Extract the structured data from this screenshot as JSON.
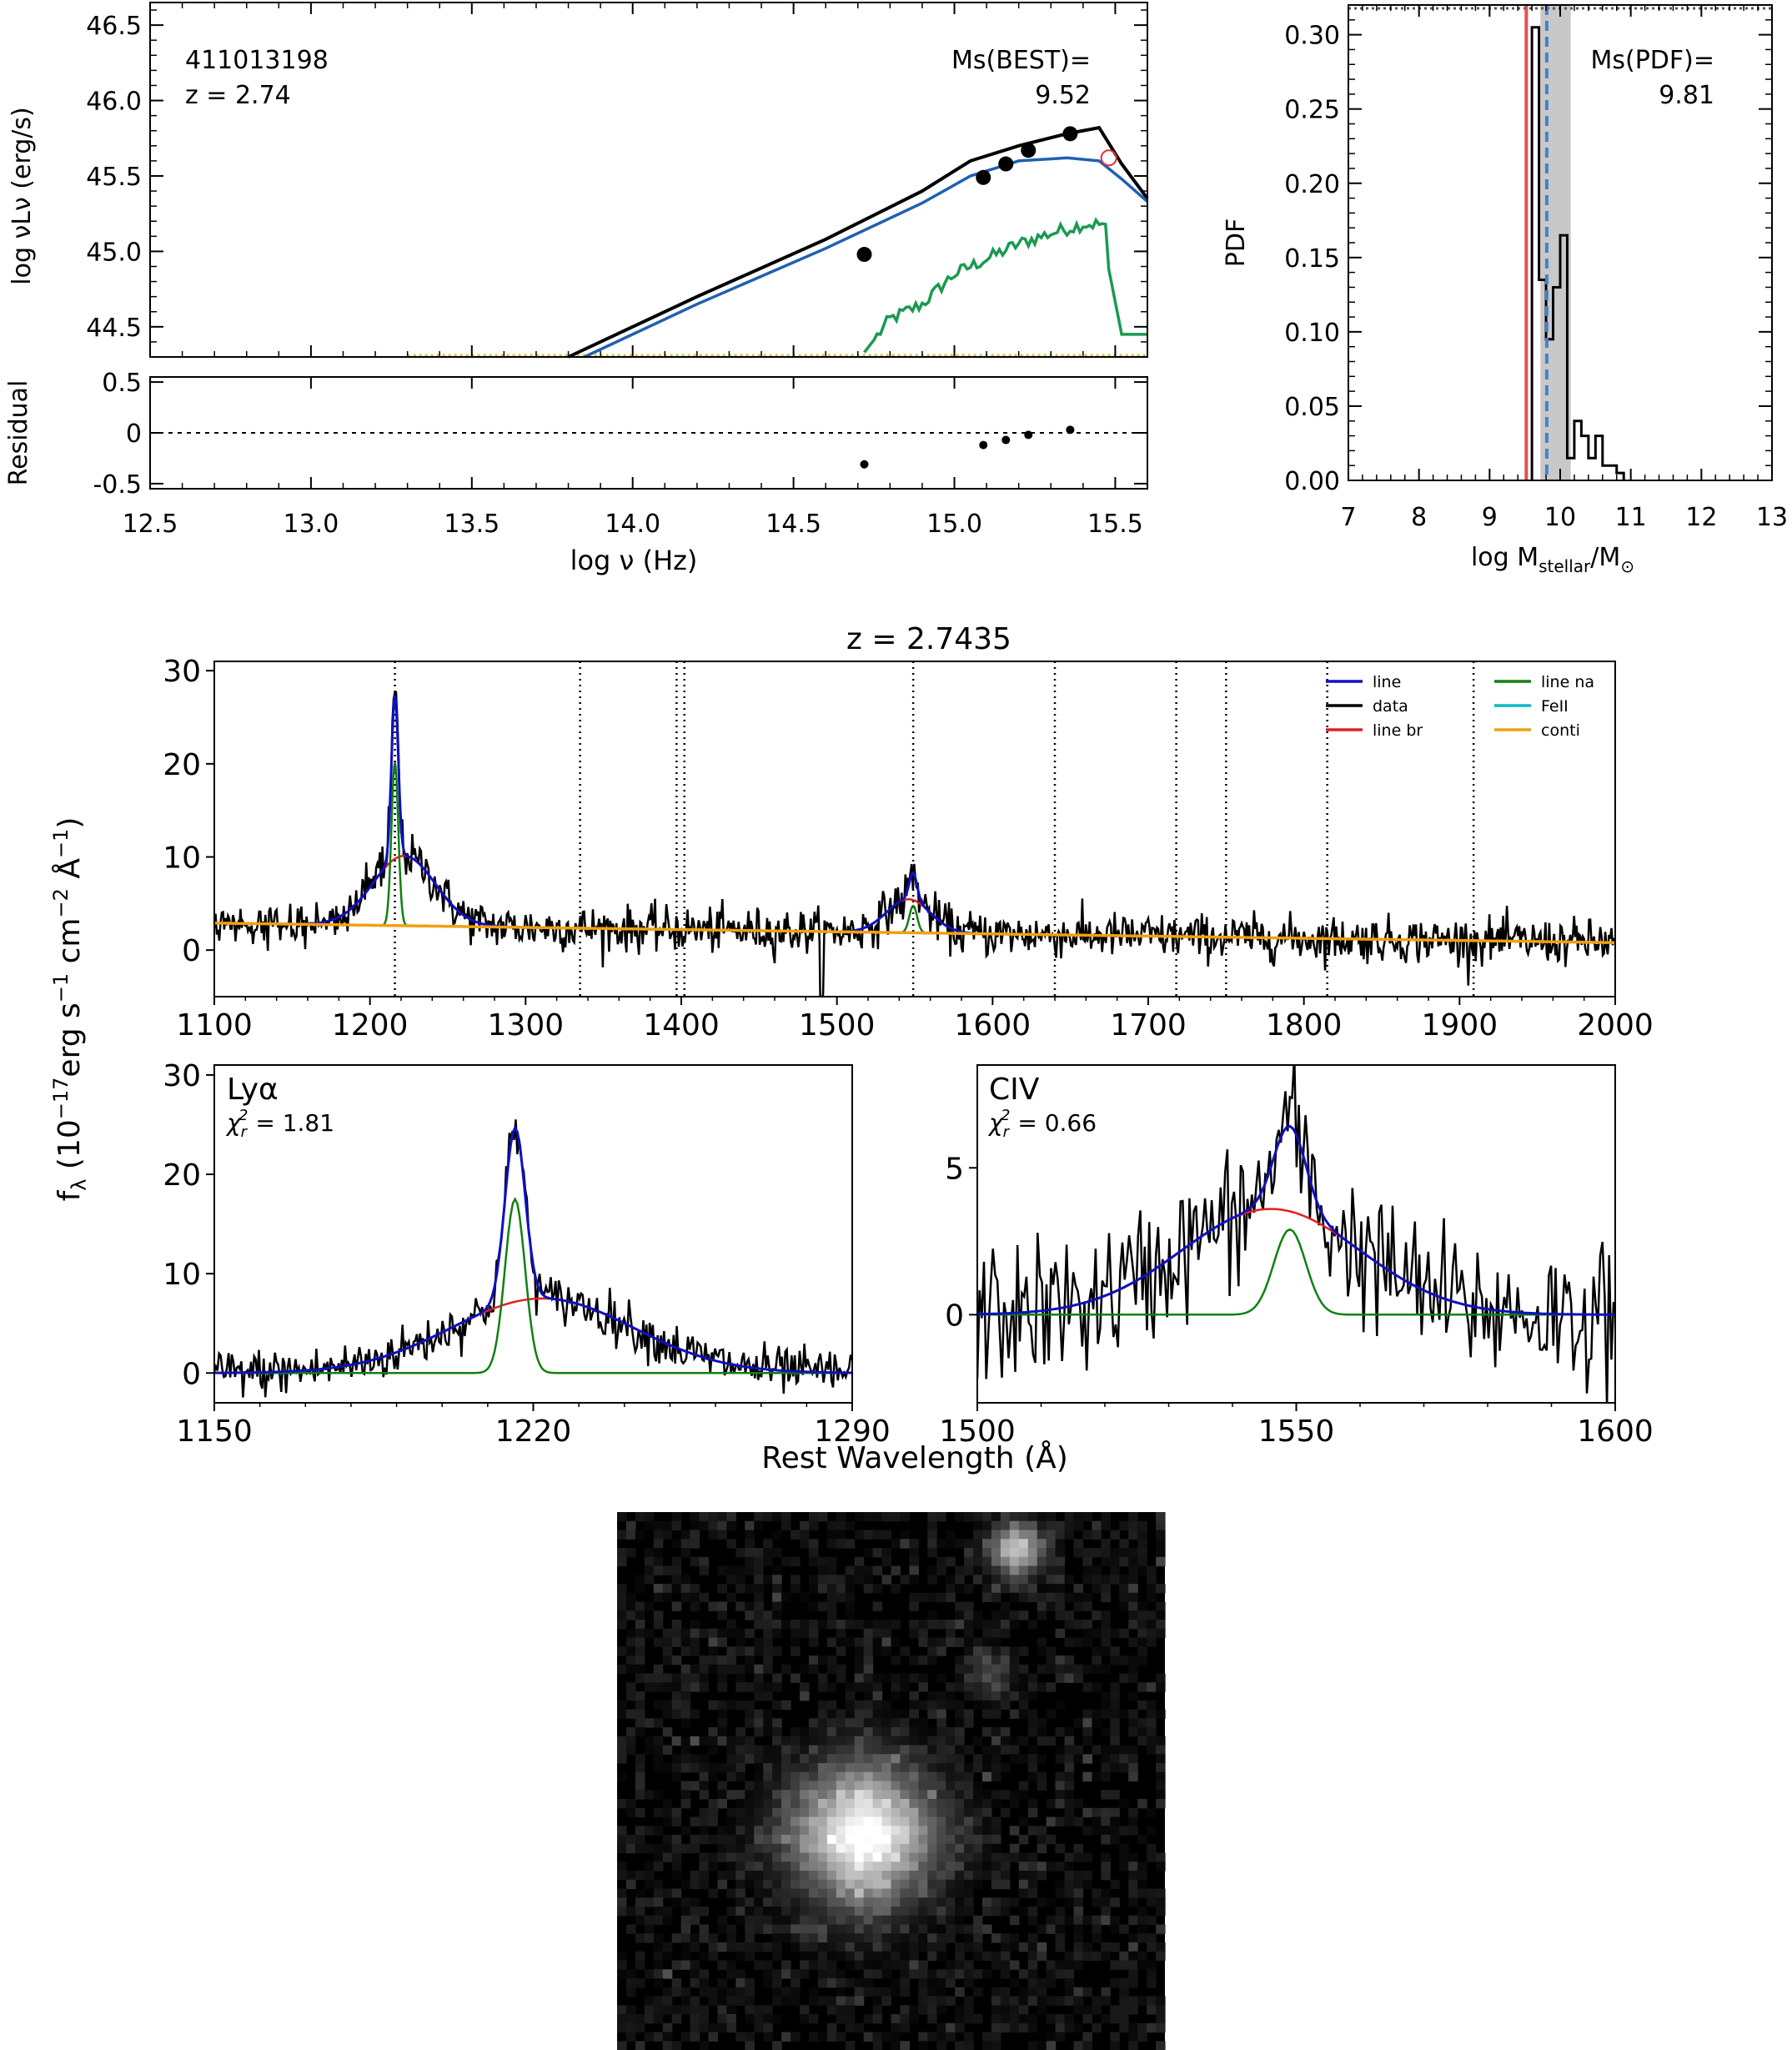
{
  "sed": {
    "object_id": "411013198",
    "redshift_label": "z = 2.74",
    "ms_label": "Ms(BEST)=",
    "ms_value": "9.52",
    "ylabel": "log νLν (erg/s)",
    "residual_ylabel": "Residual",
    "xlabel": "log ν (Hz)",
    "xlim": [
      12.5,
      15.6
    ],
    "ylim": [
      44.3,
      46.65
    ],
    "res_ylim": [
      -0.55,
      0.55
    ],
    "xticks": [
      "12.5",
      "13.0",
      "13.5",
      "14.0",
      "14.5",
      "15.0",
      "15.5"
    ],
    "yticks": [
      "44.5",
      "45.0",
      "45.5",
      "46.0",
      "46.5"
    ],
    "res_yticks": [
      "0.5",
      "0",
      "-0.5"
    ],
    "colors": {
      "total": "#000000",
      "agn": "#2060b0",
      "galaxy": "#1a9a50",
      "host": "#d4c43a",
      "upper": "#e03030"
    }
  },
  "pdf": {
    "ylabel": "PDF",
    "xlabel": "log M",
    "xlabel_sub": "stellar",
    "xlabel_tail": "/M",
    "xlabel_sun": "⊙",
    "ms_label": "Ms(PDF)=",
    "ms_value": "9.81",
    "xlim": [
      7,
      13
    ],
    "ylim": [
      0,
      0.32
    ],
    "xticks": [
      "7",
      "8",
      "9",
      "10",
      "11",
      "12",
      "13"
    ],
    "yticks": [
      "0.00",
      "0.05",
      "0.10",
      "0.15",
      "0.20",
      "0.25",
      "0.30"
    ],
    "best_mass": 9.52,
    "pdf_mass": 9.81,
    "band": [
      9.72,
      10.15
    ],
    "colors": {
      "best": "#e05050",
      "pdf": "#4a80c8",
      "band": "#c8c8c8"
    }
  },
  "spectrum": {
    "title": "z = 2.7435",
    "ylabel": "f",
    "ylabel_sub": "λ",
    "ylabel_rest": " (10",
    "ylabel_exp1": "−17",
    "ylabel_mid": "erg s",
    "ylabel_exp2": "−1",
    "ylabel_mid2": " cm",
    "ylabel_exp3": "−2",
    "ylabel_mid3": " Å",
    "ylabel_exp4": "−1",
    "ylabel_end": ")",
    "xlim": [
      1100,
      2000
    ],
    "ylim": [
      -5,
      31
    ],
    "xticks": [
      "1100",
      "1200",
      "1300",
      "1400",
      "1500",
      "1600",
      "1700",
      "1800",
      "1900",
      "2000"
    ],
    "yticks": [
      "0",
      "10",
      "20",
      "30"
    ],
    "line_markers": [
      1216,
      1335,
      1397,
      1402,
      1549,
      1640,
      1718,
      1750,
      1815,
      1909
    ],
    "legend": [
      "line",
      "data",
      "line br",
      "line na",
      "FeII",
      "conti"
    ],
    "legend_colors": [
      "#1010c0",
      "#000000",
      "#e02020",
      "#108010",
      "#10b8c8",
      "#f0a010"
    ]
  },
  "lya": {
    "label": "Lyα",
    "chi_label": "χ",
    "chi_sub": "r",
    "chi_sup": "2",
    "chi_value": " = 1.81",
    "xlim": [
      1150,
      1290
    ],
    "ylim": [
      -3,
      31
    ],
    "xticks": [
      "1150",
      "1220",
      "1290"
    ],
    "yticks": [
      "0",
      "10",
      "20",
      "30"
    ]
  },
  "civ": {
    "label": "CIV",
    "chi_label": "χ",
    "chi_sub": "r",
    "chi_sup": "2",
    "chi_value": " = 0.66",
    "xlim": [
      1500,
      1600
    ],
    "ylim": [
      -3,
      8.5
    ],
    "xticks": [
      "1500",
      "1550",
      "1600"
    ],
    "yticks": [
      "0",
      "5"
    ]
  },
  "xlabel_rest": "Rest Wavelength (Å)",
  "chart_data": [
    {
      "type": "scatter",
      "title": "411013198 z = 2.74",
      "xlabel": "log ν (Hz)",
      "ylabel": "log νLν (erg/s)",
      "xlim": [
        12.5,
        15.6
      ],
      "ylim": [
        44.3,
        46.65
      ],
      "points": [
        [
          14.72,
          44.98
        ],
        [
          15.09,
          45.49
        ],
        [
          15.16,
          45.58
        ],
        [
          15.23,
          45.67
        ],
        [
          15.36,
          45.78
        ]
      ],
      "upper_limit_point": [
        15.48,
        45.62
      ],
      "series": [
        {
          "name": "total",
          "x": [
            13.8,
            14.2,
            14.6,
            14.9,
            15.05,
            15.2,
            15.35,
            15.45,
            15.52,
            15.6
          ],
          "y": [
            44.3,
            44.7,
            45.08,
            45.4,
            45.6,
            45.7,
            45.78,
            45.82,
            45.58,
            45.35
          ]
        },
        {
          "name": "agn",
          "x": [
            13.85,
            14.2,
            14.6,
            14.9,
            15.05,
            15.2,
            15.35,
            15.45,
            15.52,
            15.6
          ],
          "y": [
            44.3,
            44.65,
            45.02,
            45.32,
            45.5,
            45.6,
            45.62,
            45.6,
            45.48,
            45.33
          ]
        },
        {
          "name": "galaxy",
          "x": [
            14.72,
            14.8,
            14.9,
            15.0,
            15.1,
            15.2,
            15.3,
            15.4,
            15.47,
            15.48,
            15.52,
            15.6
          ],
          "y": [
            44.33,
            44.55,
            44.65,
            44.85,
            44.95,
            45.05,
            45.12,
            45.18,
            45.18,
            44.88,
            44.45,
            44.45
          ]
        }
      ],
      "residuals": [
        [
          14.72,
          -0.31
        ],
        [
          15.09,
          -0.12
        ],
        [
          15.16,
          -0.07
        ],
        [
          15.23,
          -0.02
        ],
        [
          15.36,
          0.03
        ]
      ]
    },
    {
      "type": "bar",
      "title": "Ms(PDF)= 9.81",
      "xlabel": "log M_stellar/M_⊙",
      "ylabel": "PDF",
      "xlim": [
        7,
        13
      ],
      "ylim": [
        0,
        0.32
      ],
      "bin_edges": [
        9.6,
        9.7,
        9.8,
        9.9,
        10.0,
        10.1,
        10.2,
        10.3,
        10.4,
        10.5,
        10.6,
        10.7,
        10.8,
        10.9
      ],
      "values": [
        0.305,
        0.135,
        0.095,
        0.13,
        0.165,
        0.015,
        0.04,
        0.03,
        0.015,
        0.03,
        0.01,
        0.01,
        0.005
      ]
    },
    {
      "type": "line",
      "title": "z = 2.7435",
      "xlabel": "Rest Wavelength (Å)",
      "ylabel": "f_λ (10^-17 erg s^-1 cm^-2 Å^-1)",
      "xlim": [
        1100,
        2000
      ],
      "ylim": [
        -5,
        31
      ],
      "components": {
        "conti": {
          "x": [
            1100,
            2000
          ],
          "y": [
            2.9,
            0.8
          ]
        },
        "lya_narrow": {
          "center": 1216,
          "amplitude": 17.5,
          "sigma": 2.2
        },
        "lya_broad": {
          "center": 1222,
          "amplitude": 7.5,
          "sigma": 20
        },
        "civ_narrow": {
          "center": 1549,
          "amplitude": 2.9,
          "sigma": 2.5
        },
        "civ_broad": {
          "center": 1546,
          "amplitude": 3.6,
          "sigma": 14
        }
      },
      "noise_sigma": 1.2,
      "feature_lines": [
        1216,
        1335,
        1397,
        1402,
        1549,
        1640,
        1718,
        1750,
        1815,
        1909
      ]
    },
    {
      "type": "line",
      "title": "Lyα χ²_r = 1.81",
      "xlim": [
        1150,
        1290
      ],
      "ylim": [
        -3,
        31
      ],
      "peak": [
        1216,
        28.5
      ]
    },
    {
      "type": "line",
      "title": "CIV χ²_r = 0.66",
      "xlim": [
        1500,
        1600
      ],
      "ylim": [
        -3,
        8.5
      ],
      "peak": [
        1549,
        6.5
      ]
    }
  ]
}
